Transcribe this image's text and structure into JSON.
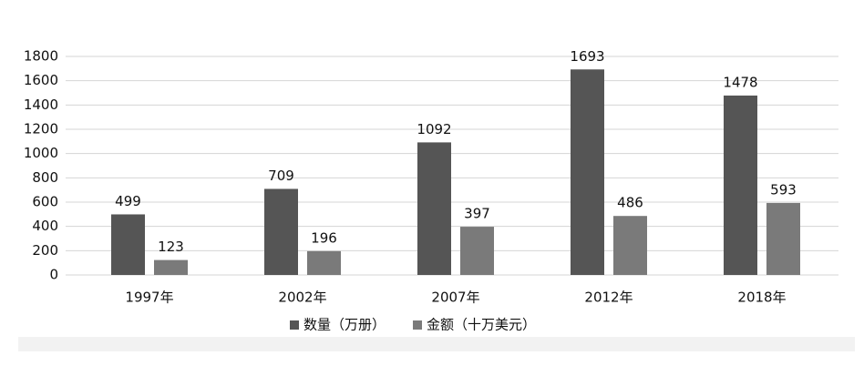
{
  "chart_data": {
    "type": "bar",
    "categories": [
      "1997年",
      "2002年",
      "2007年",
      "2012年",
      "2018年"
    ],
    "series": [
      {
        "name": "数量（万册）",
        "color": "#555555",
        "values": [
          499,
          709,
          1092,
          1693,
          1478
        ]
      },
      {
        "name": "金额（十万美元）",
        "color": "#7a7a7a",
        "values": [
          123,
          196,
          397,
          486,
          593
        ]
      }
    ],
    "ylim": [
      0,
      1800
    ],
    "yticks": [
      0,
      200,
      400,
      600,
      800,
      1000,
      1200,
      1400,
      1600,
      1800
    ],
    "grid": true,
    "legend": "bottom"
  }
}
